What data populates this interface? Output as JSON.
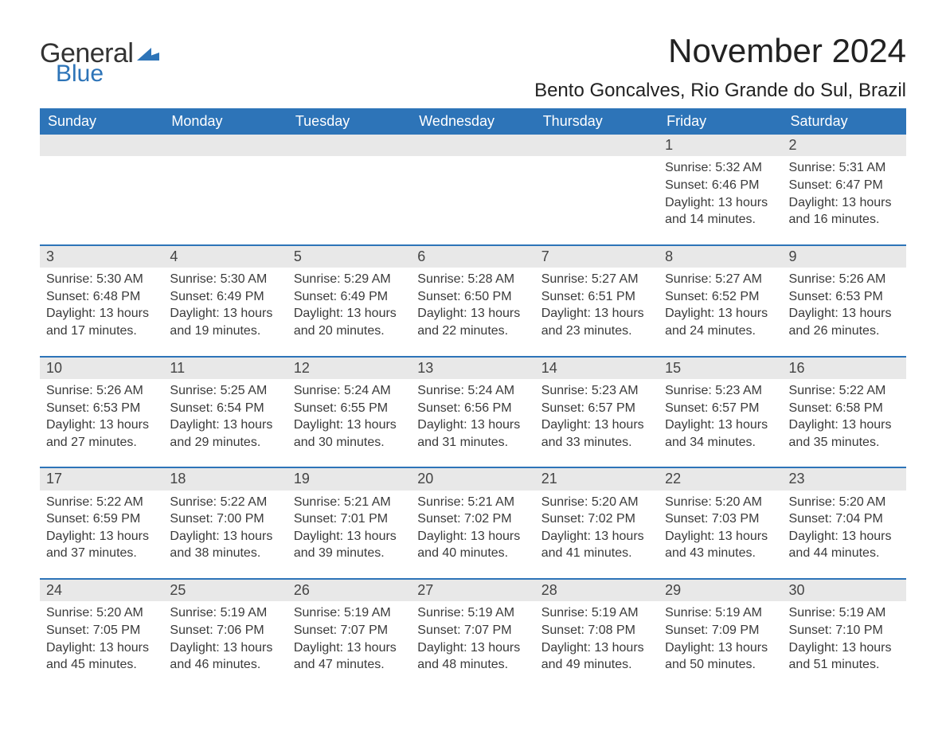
{
  "brand": {
    "text1": "General",
    "text2": "Blue",
    "color_text1": "#333333",
    "color_text2": "#2d74b8",
    "flag_color": "#2d74b8"
  },
  "header": {
    "month_title": "November 2024",
    "location": "Bento Goncalves, Rio Grande do Sul, Brazil"
  },
  "colors": {
    "header_bg": "#2d74b8",
    "header_text": "#ffffff",
    "daynum_bg": "#e8e8e8",
    "row_separator": "#2d74b8",
    "body_text": "#3a3a3a",
    "page_bg": "#ffffff"
  },
  "typography": {
    "month_title_fontsize": 42,
    "location_fontsize": 24,
    "weekday_fontsize": 18,
    "daynum_fontsize": 18,
    "cell_fontsize": 16,
    "font_family": "Arial"
  },
  "weekdays": [
    "Sunday",
    "Monday",
    "Tuesday",
    "Wednesday",
    "Thursday",
    "Friday",
    "Saturday"
  ],
  "weeks": [
    [
      {
        "day": null
      },
      {
        "day": null
      },
      {
        "day": null
      },
      {
        "day": null
      },
      {
        "day": null
      },
      {
        "day": 1,
        "sunrise": "5:32 AM",
        "sunset": "6:46 PM",
        "daylight": "13 hours and 14 minutes."
      },
      {
        "day": 2,
        "sunrise": "5:31 AM",
        "sunset": "6:47 PM",
        "daylight": "13 hours and 16 minutes."
      }
    ],
    [
      {
        "day": 3,
        "sunrise": "5:30 AM",
        "sunset": "6:48 PM",
        "daylight": "13 hours and 17 minutes."
      },
      {
        "day": 4,
        "sunrise": "5:30 AM",
        "sunset": "6:49 PM",
        "daylight": "13 hours and 19 minutes."
      },
      {
        "day": 5,
        "sunrise": "5:29 AM",
        "sunset": "6:49 PM",
        "daylight": "13 hours and 20 minutes."
      },
      {
        "day": 6,
        "sunrise": "5:28 AM",
        "sunset": "6:50 PM",
        "daylight": "13 hours and 22 minutes."
      },
      {
        "day": 7,
        "sunrise": "5:27 AM",
        "sunset": "6:51 PM",
        "daylight": "13 hours and 23 minutes."
      },
      {
        "day": 8,
        "sunrise": "5:27 AM",
        "sunset": "6:52 PM",
        "daylight": "13 hours and 24 minutes."
      },
      {
        "day": 9,
        "sunrise": "5:26 AM",
        "sunset": "6:53 PM",
        "daylight": "13 hours and 26 minutes."
      }
    ],
    [
      {
        "day": 10,
        "sunrise": "5:26 AM",
        "sunset": "6:53 PM",
        "daylight": "13 hours and 27 minutes."
      },
      {
        "day": 11,
        "sunrise": "5:25 AM",
        "sunset": "6:54 PM",
        "daylight": "13 hours and 29 minutes."
      },
      {
        "day": 12,
        "sunrise": "5:24 AM",
        "sunset": "6:55 PM",
        "daylight": "13 hours and 30 minutes."
      },
      {
        "day": 13,
        "sunrise": "5:24 AM",
        "sunset": "6:56 PM",
        "daylight": "13 hours and 31 minutes."
      },
      {
        "day": 14,
        "sunrise": "5:23 AM",
        "sunset": "6:57 PM",
        "daylight": "13 hours and 33 minutes."
      },
      {
        "day": 15,
        "sunrise": "5:23 AM",
        "sunset": "6:57 PM",
        "daylight": "13 hours and 34 minutes."
      },
      {
        "day": 16,
        "sunrise": "5:22 AM",
        "sunset": "6:58 PM",
        "daylight": "13 hours and 35 minutes."
      }
    ],
    [
      {
        "day": 17,
        "sunrise": "5:22 AM",
        "sunset": "6:59 PM",
        "daylight": "13 hours and 37 minutes."
      },
      {
        "day": 18,
        "sunrise": "5:22 AM",
        "sunset": "7:00 PM",
        "daylight": "13 hours and 38 minutes."
      },
      {
        "day": 19,
        "sunrise": "5:21 AM",
        "sunset": "7:01 PM",
        "daylight": "13 hours and 39 minutes."
      },
      {
        "day": 20,
        "sunrise": "5:21 AM",
        "sunset": "7:02 PM",
        "daylight": "13 hours and 40 minutes."
      },
      {
        "day": 21,
        "sunrise": "5:20 AM",
        "sunset": "7:02 PM",
        "daylight": "13 hours and 41 minutes."
      },
      {
        "day": 22,
        "sunrise": "5:20 AM",
        "sunset": "7:03 PM",
        "daylight": "13 hours and 43 minutes."
      },
      {
        "day": 23,
        "sunrise": "5:20 AM",
        "sunset": "7:04 PM",
        "daylight": "13 hours and 44 minutes."
      }
    ],
    [
      {
        "day": 24,
        "sunrise": "5:20 AM",
        "sunset": "7:05 PM",
        "daylight": "13 hours and 45 minutes."
      },
      {
        "day": 25,
        "sunrise": "5:19 AM",
        "sunset": "7:06 PM",
        "daylight": "13 hours and 46 minutes."
      },
      {
        "day": 26,
        "sunrise": "5:19 AM",
        "sunset": "7:07 PM",
        "daylight": "13 hours and 47 minutes."
      },
      {
        "day": 27,
        "sunrise": "5:19 AM",
        "sunset": "7:07 PM",
        "daylight": "13 hours and 48 minutes."
      },
      {
        "day": 28,
        "sunrise": "5:19 AM",
        "sunset": "7:08 PM",
        "daylight": "13 hours and 49 minutes."
      },
      {
        "day": 29,
        "sunrise": "5:19 AM",
        "sunset": "7:09 PM",
        "daylight": "13 hours and 50 minutes."
      },
      {
        "day": 30,
        "sunrise": "5:19 AM",
        "sunset": "7:10 PM",
        "daylight": "13 hours and 51 minutes."
      }
    ]
  ],
  "labels": {
    "sunrise_prefix": "Sunrise: ",
    "sunset_prefix": "Sunset: ",
    "daylight_prefix": "Daylight: "
  }
}
